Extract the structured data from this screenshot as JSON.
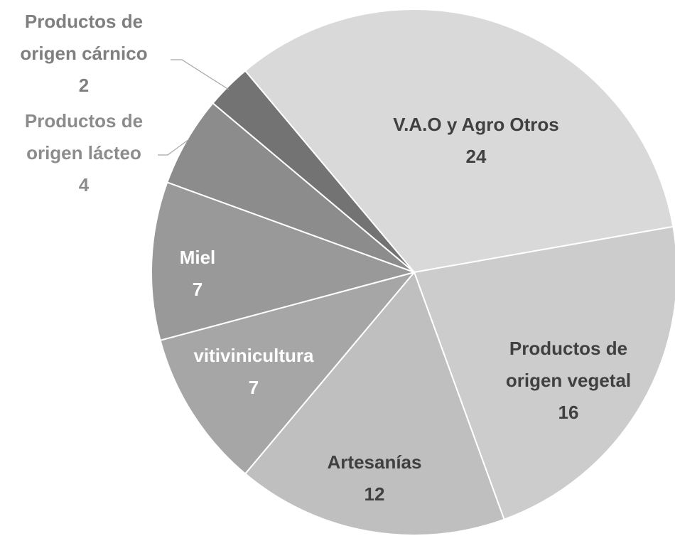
{
  "chart_data": {
    "type": "pie",
    "categories": [
      "V.A.O y Agro Otros",
      "Productos de origen vegetal",
      "Artesanías",
      "vitivinicultura",
      "Miel",
      "Productos de origen lácteo",
      "Productos de origen cárnico"
    ],
    "values": [
      24,
      16,
      12,
      7,
      7,
      4,
      2
    ],
    "colors": [
      "#d9d9d9",
      "#cccccc",
      "#bfbfbf",
      "#a6a6a6",
      "#999999",
      "#8c8c8c",
      "#737373"
    ]
  }
}
